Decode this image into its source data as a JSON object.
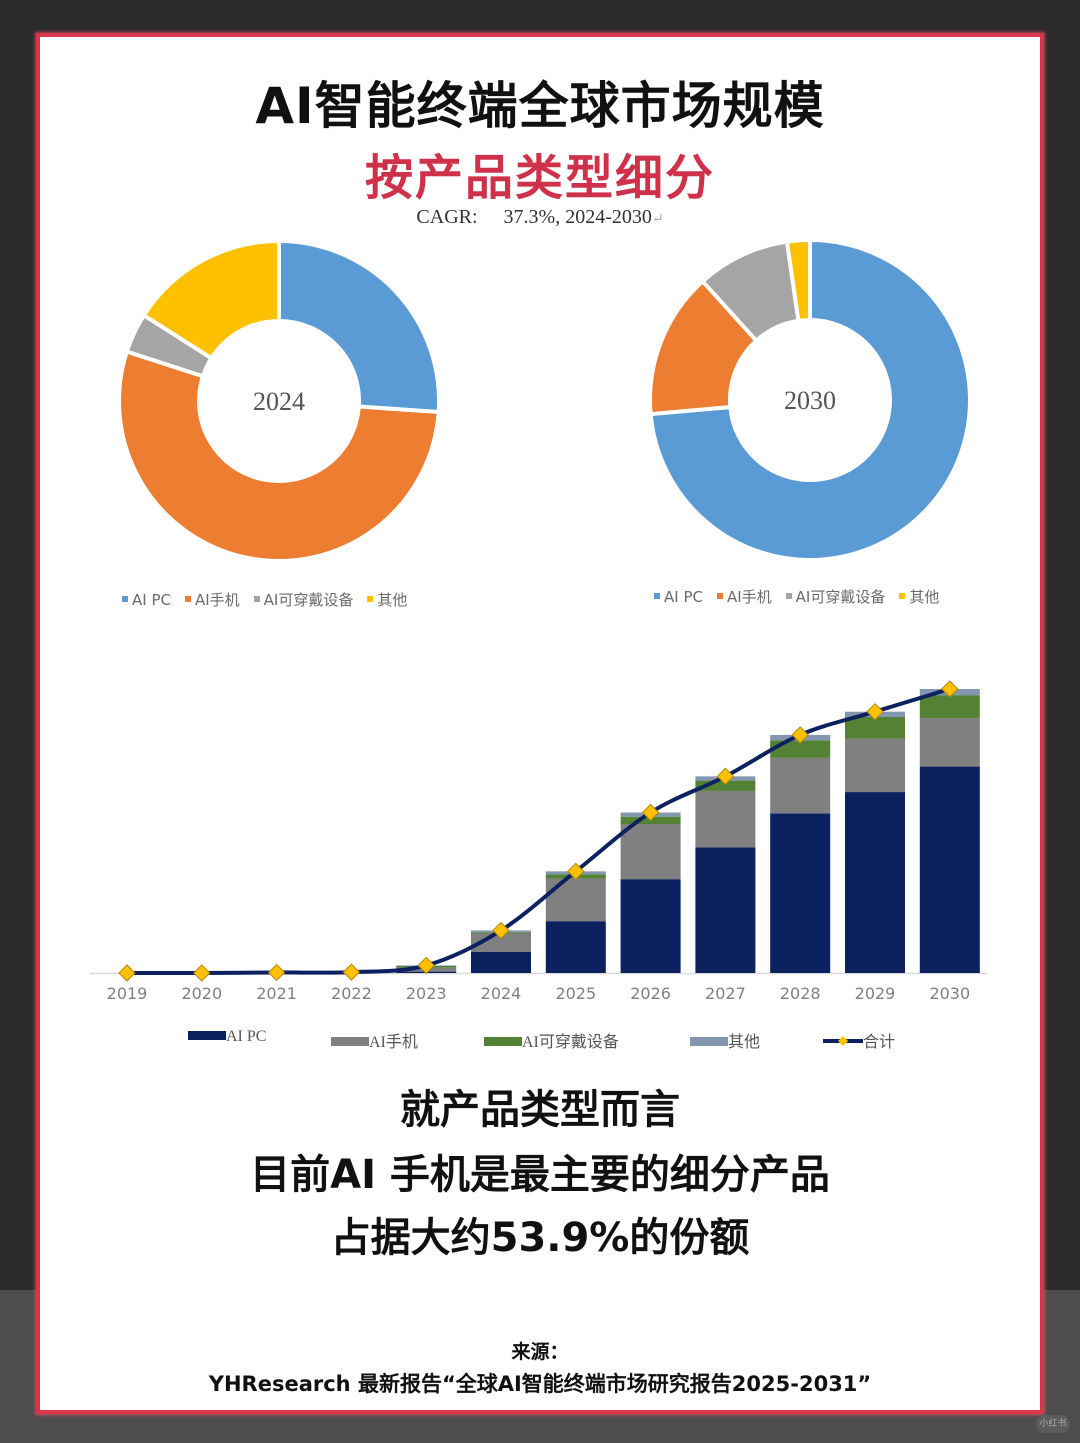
{
  "header": {
    "title": "AI智能终端全球市场规模",
    "subtitle": "按产品类型细分",
    "cagr_label": "CAGR:",
    "cagr_value": "37.3%, 2024-2030",
    "cagr_return_mark": "↵"
  },
  "colors": {
    "frame_bg": "#2b2b2b",
    "frame_border": "#d9364a",
    "subtitle": "#d0314a",
    "pie_ai_pc": "#5b9bd5",
    "pie_ai_phone": "#ed7d31",
    "pie_ai_wearable": "#a5a5a5",
    "pie_other": "#ffc000",
    "bar_ai_pc": "#0b2160",
    "bar_ai_phone": "#808080",
    "bar_ai_wearable": "#548235",
    "bar_other": "#8497b0",
    "total_line": "#0b2160",
    "total_marker": "#ffc000"
  },
  "pie_legend": [
    {
      "label": "AI PC",
      "color": "#5b9bd5"
    },
    {
      "label": "AI手机",
      "color": "#ed7d31"
    },
    {
      "label": "AI可穿戴设备",
      "color": "#a5a5a5"
    },
    {
      "label": "其他",
      "color": "#ffc000"
    }
  ],
  "bar_legend": [
    {
      "label": "AI PC",
      "color": "#0b2160",
      "type": "bar"
    },
    {
      "label": "AI手机",
      "color": "#808080",
      "type": "bar"
    },
    {
      "label": "AI可穿戴设备",
      "color": "#548235",
      "type": "bar"
    },
    {
      "label": "其他",
      "color": "#8497b0",
      "type": "bar"
    },
    {
      "label": "合计",
      "color": "#0b2160",
      "type": "line"
    }
  ],
  "conclusion": {
    "line1": "就产品类型而言",
    "line2": "目前AI 手机是最主要的细分产品",
    "line3": "占据大约53.9%的份额"
  },
  "source": {
    "label": "来源：",
    "text": "YHResearch 最新报告“全球AI智能终端市场研究报告2025-2031”"
  },
  "watermark": "小红书",
  "chart_data": [
    {
      "type": "pie",
      "subtype": "donut",
      "title": "2024",
      "center_label": "2024",
      "categories": [
        "AI PC",
        "AI手机",
        "AI可穿戴设备",
        "其他"
      ],
      "values": [
        26.1,
        53.9,
        4.0,
        16.0
      ],
      "unit": "%",
      "colors": [
        "#5b9bd5",
        "#ed7d31",
        "#a5a5a5",
        "#ffc000"
      ],
      "legend_position": "bottom"
    },
    {
      "type": "pie",
      "subtype": "donut",
      "title": "2030",
      "center_label": "2030",
      "categories": [
        "AI PC",
        "AI手机",
        "AI可穿戴设备",
        "其他"
      ],
      "values": [
        73.6,
        14.7,
        9.4,
        2.3
      ],
      "unit": "%",
      "colors": [
        "#5b9bd5",
        "#ed7d31",
        "#a5a5a5",
        "#ffc000"
      ],
      "legend_position": "bottom"
    },
    {
      "type": "bar",
      "subtype": "stacked_bar_with_line",
      "title": "",
      "xlabel": "",
      "ylabel": "",
      "y_axis_shown": false,
      "grid": false,
      "legend_position": "bottom",
      "categories": [
        "2019",
        "2020",
        "2021",
        "2022",
        "2023",
        "2024",
        "2025",
        "2026",
        "2027",
        "2028",
        "2029",
        "2030"
      ],
      "series": [
        {
          "name": "AI PC",
          "type": "bar",
          "color": "#0b2160",
          "values": [
            0,
            0,
            0,
            0,
            0.5,
            7.6,
            18.5,
            33.5,
            44.9,
            57.0,
            64.6,
            73.7
          ]
        },
        {
          "name": "AI手机",
          "type": "bar",
          "color": "#808080",
          "values": [
            0,
            0,
            0.2,
            0.3,
            1.5,
            6.5,
            15.2,
            19.7,
            20.1,
            19.8,
            19.0,
            17.3
          ]
        },
        {
          "name": "AI可穿戴设备",
          "type": "bar",
          "color": "#548235",
          "values": [
            0,
            0,
            0,
            0,
            0.5,
            0.4,
            1.5,
            2.6,
            3.7,
            6.3,
            7.8,
            8.2
          ]
        },
        {
          "name": "其他",
          "type": "bar",
          "color": "#8497b0",
          "values": [
            0,
            0,
            0,
            0,
            0.2,
            0.7,
            1.1,
            1.5,
            1.5,
            1.9,
            1.9,
            2.2
          ]
        },
        {
          "name": "合计",
          "type": "line",
          "color": "#0b2160",
          "marker": "diamond",
          "marker_color": "#ffc000",
          "values": [
            0,
            0,
            0.2,
            0.3,
            2.7,
            15.2,
            36.3,
            57.3,
            70.2,
            85.0,
            93.3,
            101.4
          ]
        }
      ],
      "ylim": [
        0,
        105
      ]
    }
  ]
}
